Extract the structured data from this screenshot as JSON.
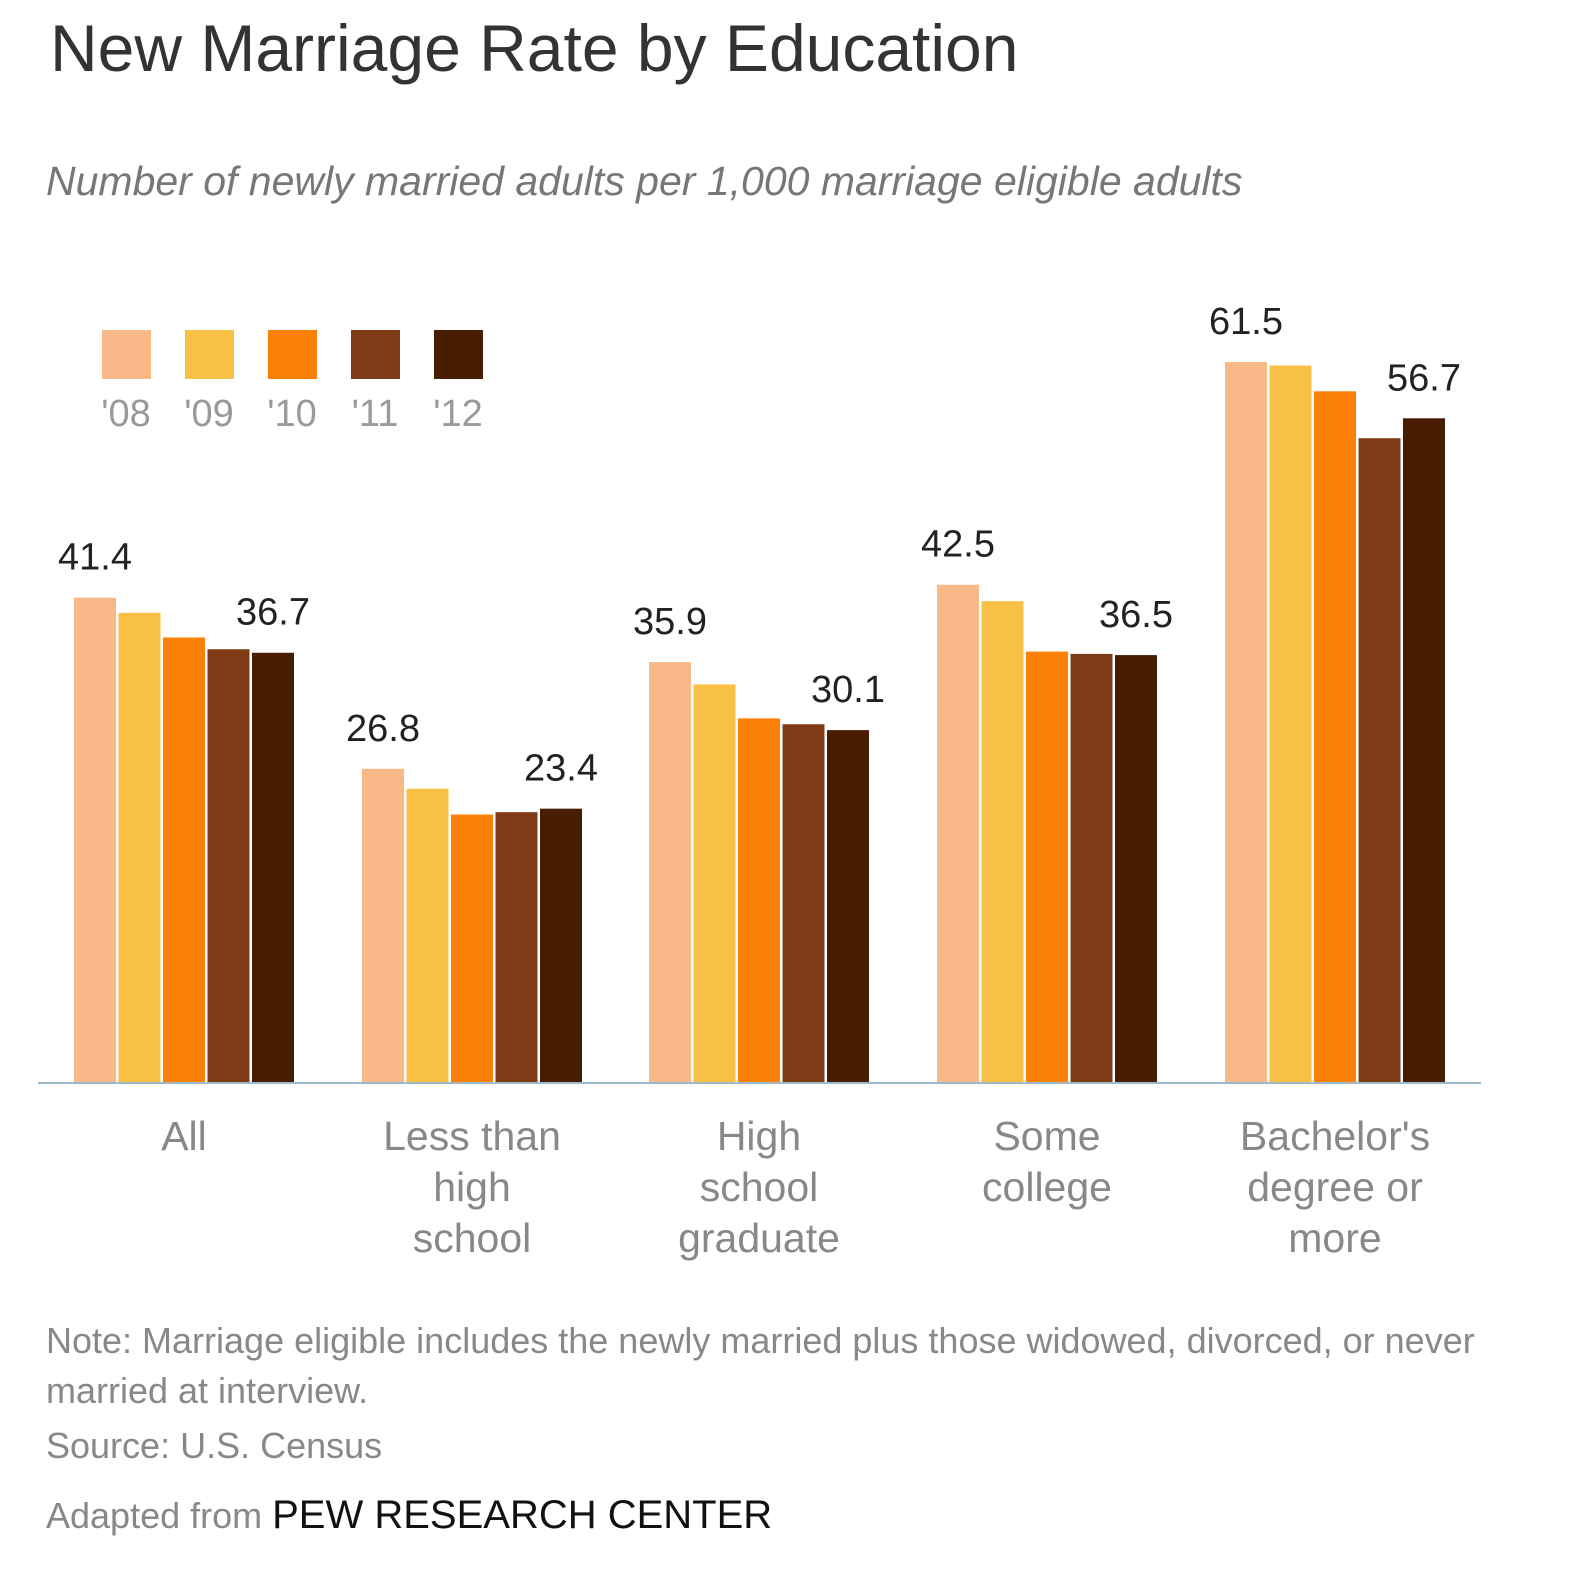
{
  "chart_data": {
    "type": "bar",
    "title": "New Marriage Rate by Education",
    "subtitle": "Number of newly married adults per 1,000 marriage eligible adults",
    "categories": [
      [
        "All"
      ],
      [
        "Less than",
        "high",
        "school"
      ],
      [
        "High",
        "school",
        "graduate"
      ],
      [
        "Some",
        "college"
      ],
      [
        "Bachelor's",
        "degree or",
        "more"
      ]
    ],
    "series": [
      {
        "name": "'08",
        "color": "#F8B887",
        "values": [
          41.4,
          26.8,
          35.9,
          42.5,
          61.5
        ]
      },
      {
        "name": "'09",
        "color": "#F8C044",
        "values": [
          40.1,
          25.1,
          34.0,
          41.1,
          61.2
        ]
      },
      {
        "name": "'10",
        "color": "#FB8005",
        "values": [
          38.0,
          22.9,
          31.1,
          36.8,
          59.0
        ]
      },
      {
        "name": "'11",
        "color": "#7F3B15",
        "values": [
          37.0,
          23.1,
          30.6,
          36.6,
          55.0
        ]
      },
      {
        "name": "'12",
        "color": "#481D04",
        "values": [
          36.7,
          23.4,
          30.1,
          36.5,
          56.7
        ]
      }
    ],
    "data_labels": [
      {
        "category": 0,
        "series": 0,
        "text": "41.4"
      },
      {
        "category": 0,
        "series": 4,
        "text": "36.7"
      },
      {
        "category": 1,
        "series": 0,
        "text": "26.8"
      },
      {
        "category": 1,
        "series": 4,
        "text": "23.4"
      },
      {
        "category": 2,
        "series": 0,
        "text": "35.9"
      },
      {
        "category": 2,
        "series": 4,
        "text": "30.1"
      },
      {
        "category": 3,
        "series": 0,
        "text": "42.5"
      },
      {
        "category": 3,
        "series": 4,
        "text": "36.5"
      },
      {
        "category": 4,
        "series": 0,
        "text": "61.5"
      },
      {
        "category": 4,
        "series": 4,
        "text": "56.7"
      }
    ],
    "ylim": [
      0,
      61.5
    ],
    "grid": false,
    "legend_position": "top-left",
    "xlabel": "",
    "ylabel": ""
  },
  "footer": {
    "note": "Note: Marriage eligible includes the newly married plus those widowed, divorced, or never married at interview.",
    "source": "Source: U.S. Census",
    "credit_prefix": "Adapted from ",
    "credit_org": "PEW RESEARCH CENTER"
  },
  "colors": {
    "axis": "#9DB8C8",
    "label": "#222222",
    "category_label": "#888888",
    "legend_label": "#999999"
  }
}
